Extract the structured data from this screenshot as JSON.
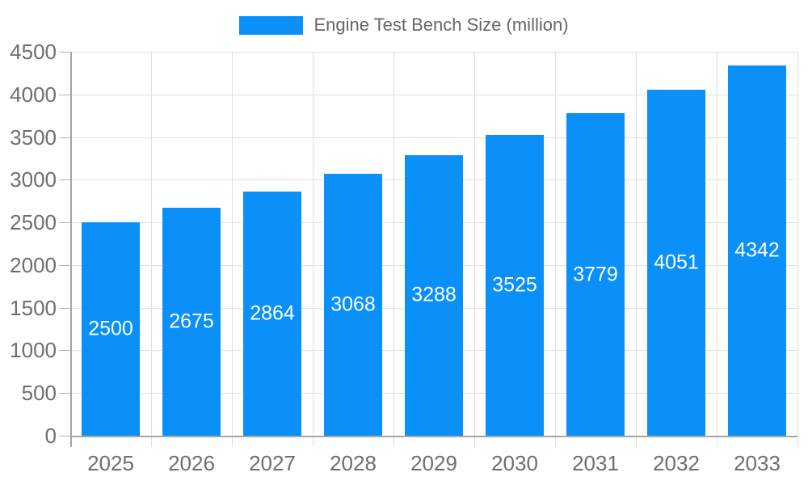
{
  "chart_data": {
    "type": "bar",
    "title": "Engine Test Bench Size (million)",
    "categories": [
      "2025",
      "2026",
      "2027",
      "2028",
      "2029",
      "2030",
      "2031",
      "2032",
      "2033"
    ],
    "values": [
      2500,
      2675,
      2864,
      3068,
      3288,
      3525,
      3779,
      4051,
      4342
    ],
    "series": [
      {
        "name": "Engine Test Bench Size (million)",
        "values": [
          2500,
          2675,
          2864,
          3068,
          3288,
          3525,
          3779,
          4051,
          4342
        ]
      }
    ],
    "xlabel": "",
    "ylabel": "",
    "ylim": [
      0,
      4500
    ],
    "ytick_step": 500,
    "ytick_labels": [
      "0",
      "500",
      "1000",
      "1500",
      "2000",
      "2500",
      "3000",
      "3500",
      "4000",
      "4500"
    ],
    "grid": true,
    "legend_position": "top-center",
    "value_labels": "inside-center",
    "colors": {
      "bar": "#0a90f8",
      "value_text": "#ffffff",
      "axis_text": "#6e6e6e",
      "legend_text": "#666666",
      "gridline": "#e0e0e0",
      "axis_line": "#a6a6a6",
      "tick": "#b3b3b3",
      "background": "#ffffff"
    }
  }
}
